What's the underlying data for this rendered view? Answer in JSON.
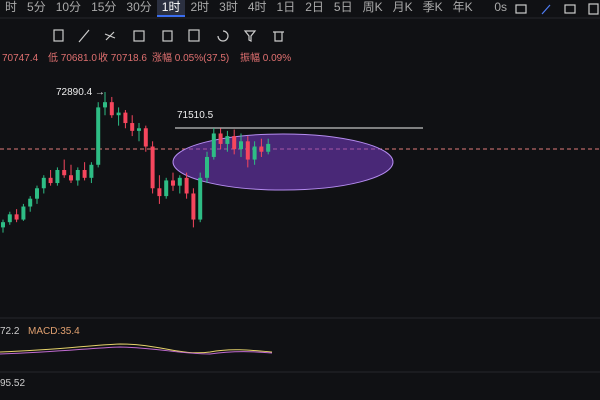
{
  "toolbar": {
    "tabs": [
      "时",
      "5分",
      "10分",
      "15分",
      "30分",
      "1时",
      "2时",
      "3时",
      "4时",
      "1日",
      "2日",
      "5日",
      "周K",
      "月K",
      "季K",
      "年K"
    ],
    "active": 5,
    "right": "0s"
  },
  "info": [
    "70747.4",
    "低 70681.0",
    "收 70718.6",
    "涨幅 0.05%(37.5)",
    "振幅 0.09%"
  ],
  "annotations": {
    "high": "72890.4 →",
    "level": "71510.5"
  },
  "indicators": {
    "macd_left": "72.2",
    "macd": "MACD:35.4",
    "bottom": "95.52"
  },
  "chart_data": {
    "type": "candlestick",
    "ylim": [
      66450,
      75650
    ],
    "up_color": "#2ebd85",
    "down_color": "#f6465d",
    "candles": [
      [
        67700,
        68000,
        67500,
        67900
      ],
      [
        67900,
        68300,
        67800,
        68200
      ],
      [
        68200,
        68400,
        67900,
        68000
      ],
      [
        68000,
        68600,
        67950,
        68500
      ],
      [
        68500,
        68900,
        68300,
        68800
      ],
      [
        68800,
        69300,
        68600,
        69200
      ],
      [
        69200,
        69700,
        69000,
        69600
      ],
      [
        69600,
        69900,
        69300,
        69400
      ],
      [
        69400,
        70000,
        69300,
        69900
      ],
      [
        69900,
        70300,
        69600,
        69700
      ],
      [
        69700,
        70100,
        69400,
        69500
      ],
      [
        69500,
        70000,
        69300,
        69900
      ],
      [
        69900,
        70200,
        69500,
        69600
      ],
      [
        69600,
        70200,
        69400,
        70100
      ],
      [
        70100,
        72500,
        70000,
        72300
      ],
      [
        72300,
        72890.4,
        72000,
        72500
      ],
      [
        72500,
        72700,
        71900,
        72000
      ],
      [
        72000,
        72300,
        71600,
        72100
      ],
      [
        72100,
        72200,
        71500,
        71700
      ],
      [
        71700,
        72000,
        71200,
        71400
      ],
      [
        71400,
        71700,
        71000,
        71500
      ],
      [
        71500,
        71600,
        70600,
        70800
      ],
      [
        70800,
        71000,
        69000,
        69200
      ],
      [
        69200,
        69700,
        68600,
        68900
      ],
      [
        68900,
        69600,
        68800,
        69500
      ],
      [
        69500,
        69800,
        69100,
        69300
      ],
      [
        69300,
        69700,
        69000,
        69600
      ],
      [
        69600,
        69800,
        68800,
        69000
      ],
      [
        69000,
        69200,
        67700,
        68000
      ],
      [
        68000,
        69800,
        67900,
        69600
      ],
      [
        69600,
        70600,
        69400,
        70400
      ],
      [
        70400,
        71510.5,
        70300,
        71300
      ],
      [
        71300,
        71500,
        70700,
        70900
      ],
      [
        70900,
        71400,
        70600,
        71200
      ],
      [
        71200,
        71450,
        70500,
        70700
      ],
      [
        70700,
        71300,
        70400,
        71000
      ],
      [
        71000,
        71200,
        70000,
        70300
      ],
      [
        70300,
        71000,
        70100,
        70800
      ],
      [
        70800,
        71100,
        70400,
        70600
      ],
      [
        70600,
        71100,
        70500,
        70900
      ]
    ]
  }
}
